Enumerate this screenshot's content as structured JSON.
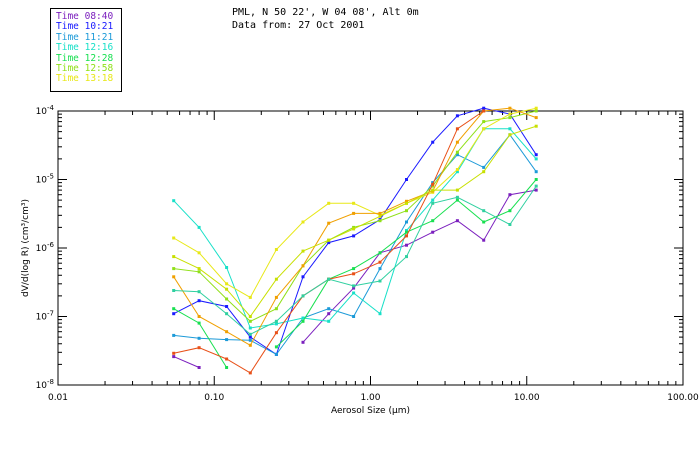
{
  "title_line1": "PML, N 50 22', W 04 08', Alt 0m",
  "title_line2": "Data from: 27 Oct 2001",
  "chart_data": {
    "type": "line",
    "xlabel": "Aerosol Size (µm)",
    "ylabel": "dV/d(log R) (cm³/cm³)",
    "xscale": "log",
    "yscale": "log",
    "xlim": [
      0.01,
      100
    ],
    "ylim": [
      1e-08,
      0.0001
    ],
    "grid": false,
    "legend_position": "top-left, outside plot",
    "x_ticks": [
      {
        "value": 0.01,
        "label": "0.01"
      },
      {
        "value": 0.1,
        "label": "0.10"
      },
      {
        "value": 1,
        "label": "1.00"
      },
      {
        "value": 10,
        "label": "10.00"
      },
      {
        "value": 100,
        "label": "100.00"
      }
    ],
    "y_ticks": [
      {
        "value": 1e-08,
        "mant": "10",
        "exp": "-8"
      },
      {
        "value": 1e-07,
        "mant": "10",
        "exp": "-7"
      },
      {
        "value": 1e-06,
        "mant": "10",
        "exp": "-6"
      },
      {
        "value": 1e-05,
        "mant": "10",
        "exp": "-5"
      },
      {
        "value": 0.0001,
        "mant": "10",
        "exp": "-4"
      }
    ],
    "x": [
      0.055,
      0.08,
      0.12,
      0.17,
      0.25,
      0.37,
      0.54,
      0.78,
      1.15,
      1.7,
      2.5,
      3.6,
      5.3,
      7.8,
      11.5
    ],
    "series": [
      {
        "name": "Time 08:40",
        "color": "#7b1fbe",
        "values": [
          2.6e-08,
          1.8e-08,
          null,
          null,
          null,
          4.2e-08,
          1.1e-07,
          2.6e-07,
          8.5e-07,
          1.1e-06,
          1.7e-06,
          2.5e-06,
          1.3e-06,
          6e-06,
          7e-06
        ]
      },
      {
        "name": "Time 10:21",
        "color": "#1a1aff",
        "values": [
          1.1e-07,
          1.7e-07,
          1.4e-07,
          5e-08,
          2.8e-08,
          3.8e-07,
          1.2e-06,
          1.5e-06,
          2.6e-06,
          1e-05,
          3.5e-05,
          8.5e-05,
          0.00011,
          9e-05,
          2.3e-05
        ]
      },
      {
        "name": "Time 11:21",
        "color": "#1c9ad8",
        "values": [
          5.3e-08,
          4.8e-08,
          4.6e-08,
          4.5e-08,
          2.8e-08,
          9.5e-08,
          1.3e-07,
          1e-07,
          5e-07,
          2.4e-06,
          9e-06,
          2.3e-05,
          1.5e-05,
          4.5e-05,
          1.3e-05
        ]
      },
      {
        "name": "Time 12:16",
        "color": "#18e0c8",
        "values": [
          4.9e-06,
          2e-06,
          5.2e-07,
          6.8e-08,
          7.8e-08,
          9.5e-08,
          8.5e-08,
          2.2e-07,
          1.1e-07,
          1.8e-06,
          5e-06,
          1.3e-05,
          5.5e-05,
          5.5e-05,
          2e-05
        ]
      },
      {
        "name": "Time 12:28",
        "color": "#18e050",
        "values": [
          1.3e-07,
          8e-08,
          1.8e-08,
          null,
          3.6e-08,
          8.5e-08,
          3.5e-07,
          5e-07,
          8.5e-07,
          1.7e-06,
          2.5e-06,
          5e-06,
          2.4e-06,
          3.5e-06,
          1e-05
        ]
      },
      {
        "name": "Time 12:58",
        "color": "#90e018",
        "values": [
          5e-07,
          4.5e-07,
          1.8e-07,
          8.5e-08,
          1.3e-07,
          5.5e-07,
          1.3e-06,
          2e-06,
          2.5e-06,
          3.5e-06,
          8e-06,
          2.5e-05,
          7e-05,
          8e-05,
          0.0001
        ]
      },
      {
        "name": "Time 13:18",
        "color": "#e8e818",
        "values": [
          1.4e-06,
          8.5e-07,
          3e-07,
          1.9e-07,
          9.5e-07,
          2.4e-06,
          4.5e-06,
          4.5e-06,
          3e-06,
          4.5e-06,
          6.5e-06,
          1.4e-05,
          5.5e-05,
          9e-05,
          0.00011
        ]
      },
      {
        "name": "",
        "color": "#f0a000",
        "values": [
          3.8e-07,
          1e-07,
          6e-08,
          3.8e-08,
          1.9e-07,
          5.5e-07,
          2.3e-06,
          3.2e-06,
          3.2e-06,
          4.8e-06,
          6.8e-06,
          3.5e-05,
          0.0001,
          0.00011,
          8e-05
        ]
      },
      {
        "name": "",
        "color": "#e85018",
        "values": [
          2.9e-08,
          3.5e-08,
          2.4e-08,
          1.5e-08,
          5.8e-08,
          2e-07,
          3.5e-07,
          4.2e-07,
          6.2e-07,
          1.5e-06,
          8.5e-06,
          5.5e-05,
          0.0001,
          null,
          null
        ]
      },
      {
        "name": "",
        "color": "#c8e000",
        "values": [
          7.5e-07,
          5e-07,
          2.5e-07,
          1e-07,
          3.5e-07,
          9e-07,
          1.3e-06,
          1.9e-06,
          2.9e-06,
          4.5e-06,
          7e-06,
          7e-06,
          1.3e-05,
          4.5e-05,
          6e-05
        ]
      },
      {
        "name": "",
        "color": "#30d0a0",
        "values": [
          2.4e-07,
          2.3e-07,
          1.1e-07,
          5.5e-08,
          8.5e-08,
          2e-07,
          3.5e-07,
          2.8e-07,
          3.3e-07,
          7.5e-07,
          4.5e-06,
          5.5e-06,
          3.5e-06,
          2.2e-06,
          8e-06
        ]
      }
    ]
  }
}
